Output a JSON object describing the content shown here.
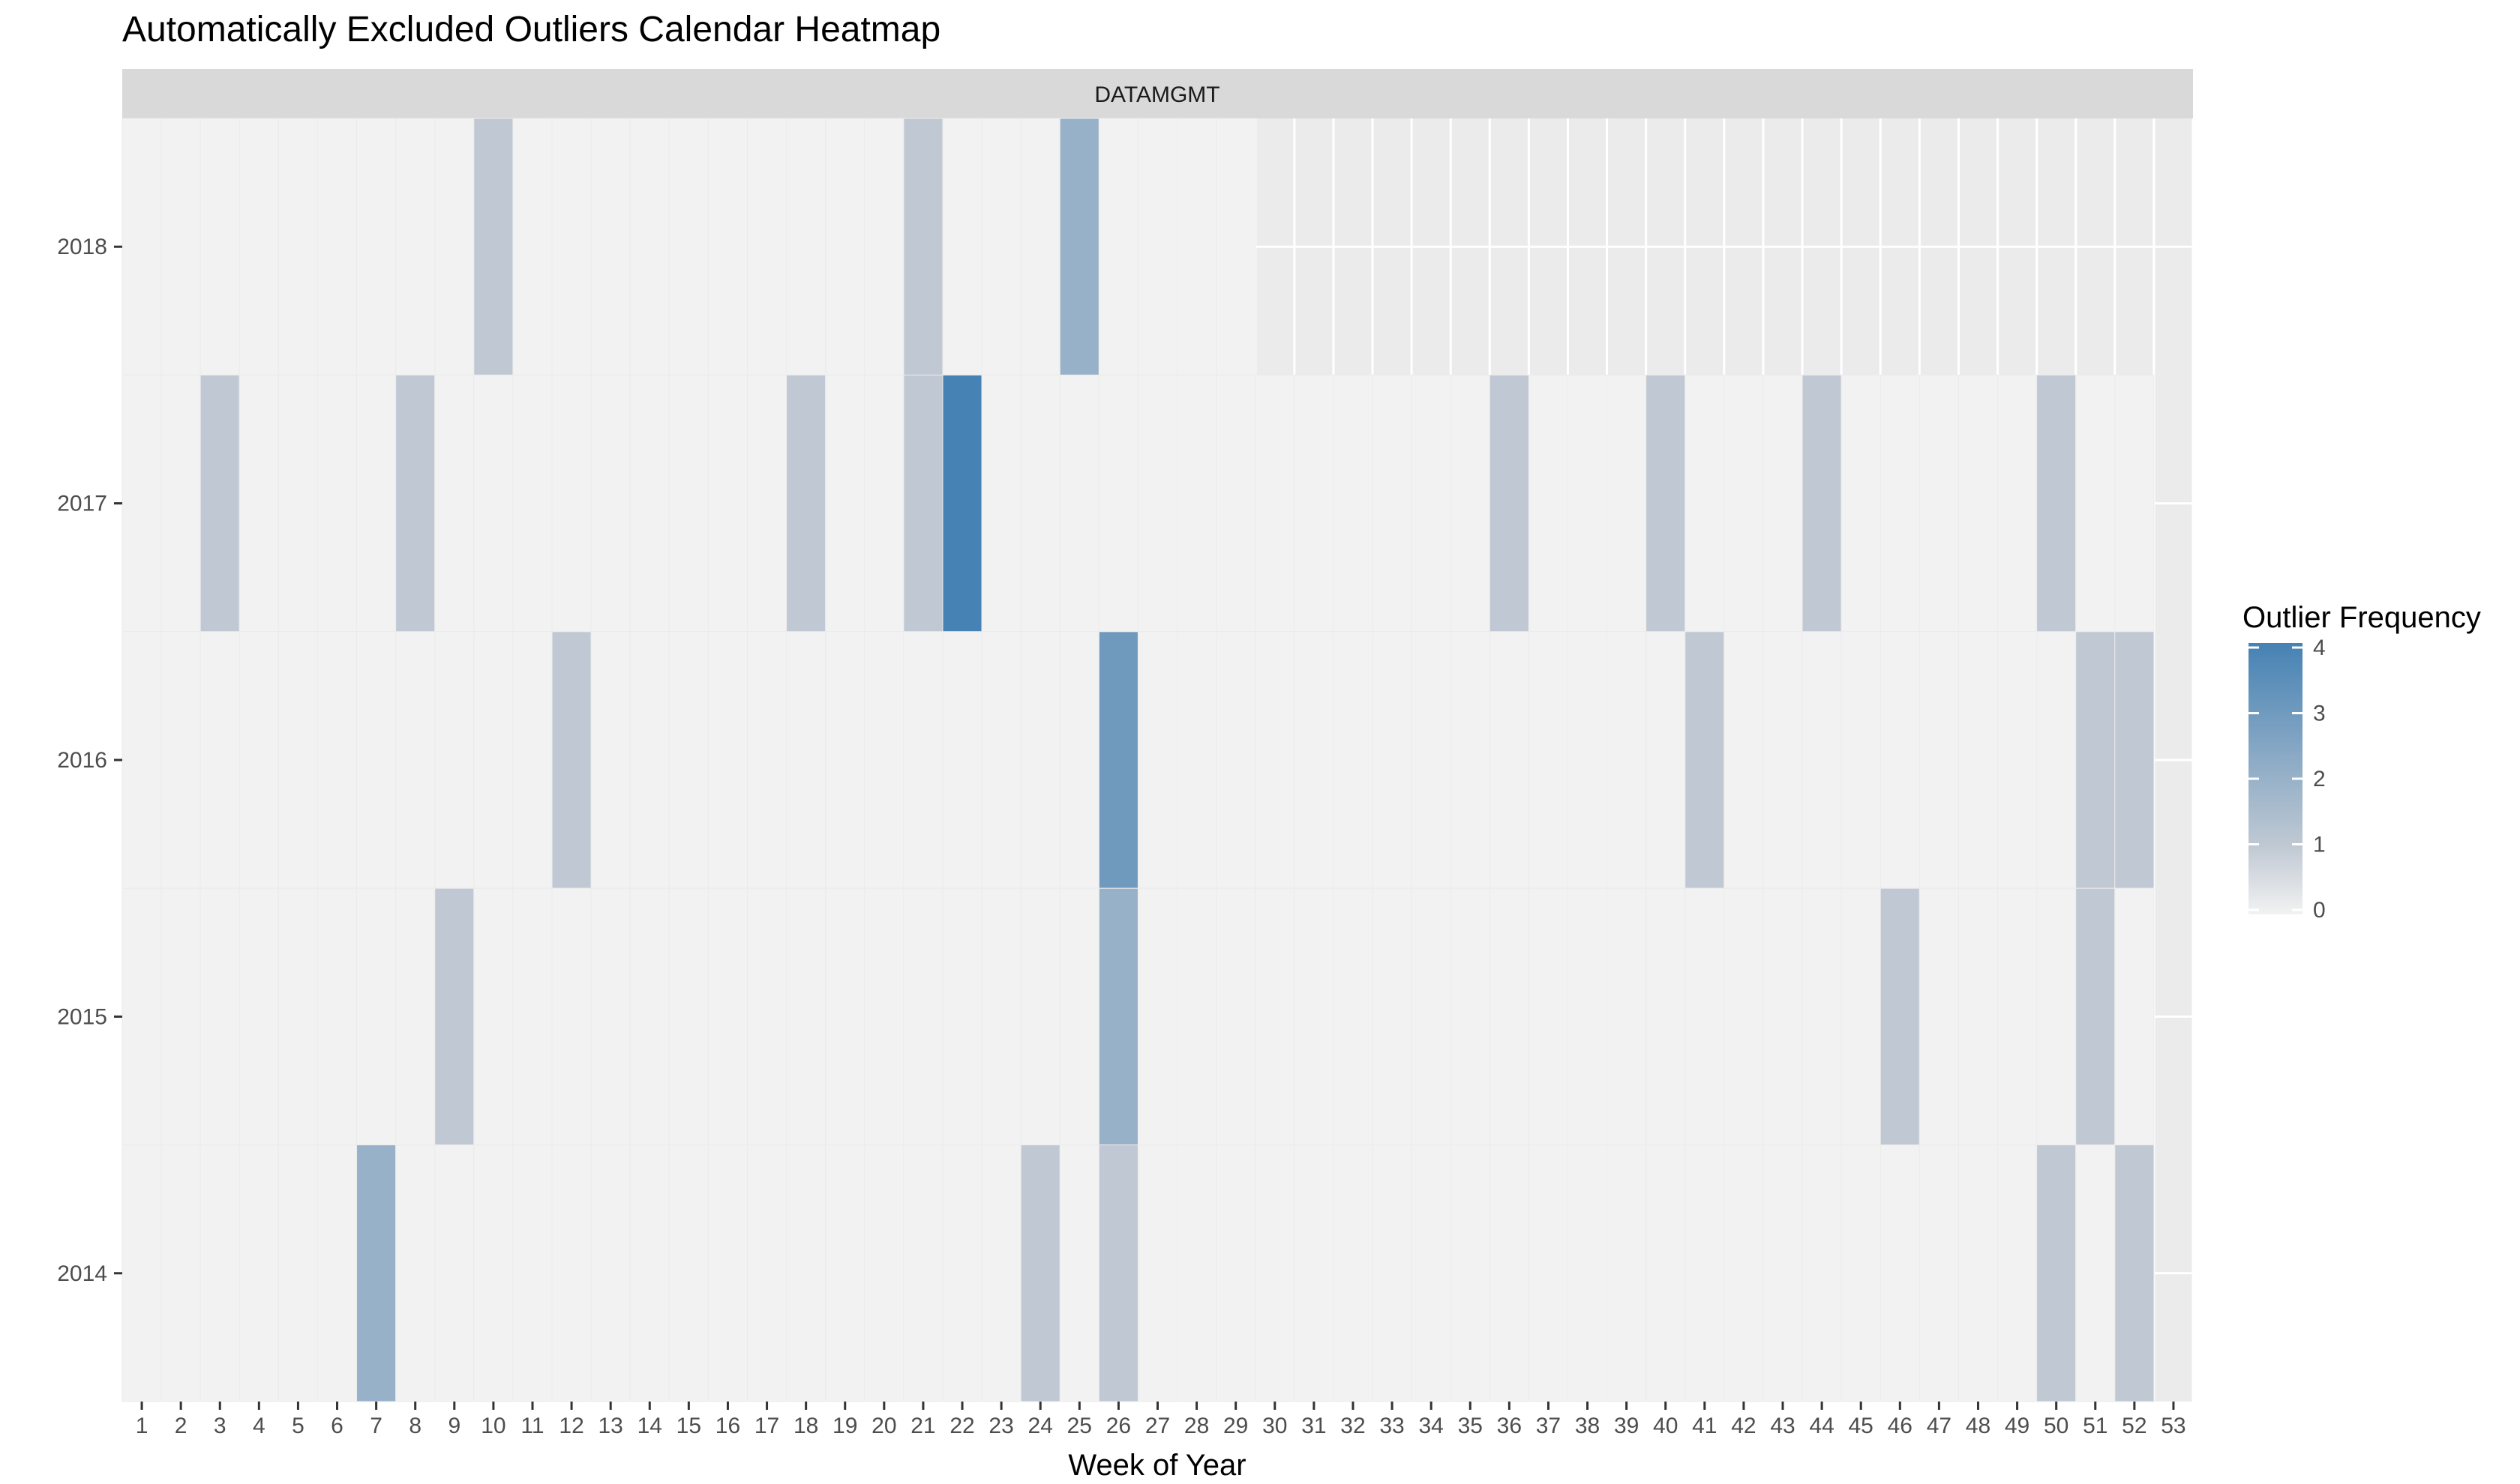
{
  "chart_data": {
    "type": "heatmap",
    "title": "Automatically Excluded Outliers Calendar Heatmap",
    "facet_label": "DATAMGMT",
    "xlabel": "Week of Year",
    "ylabel": "",
    "x_categories": [
      "1",
      "2",
      "3",
      "4",
      "5",
      "6",
      "7",
      "8",
      "9",
      "10",
      "11",
      "12",
      "13",
      "14",
      "15",
      "16",
      "17",
      "18",
      "19",
      "20",
      "21",
      "22",
      "23",
      "24",
      "25",
      "26",
      "27",
      "28",
      "29",
      "30",
      "31",
      "32",
      "33",
      "34",
      "35",
      "36",
      "37",
      "38",
      "39",
      "40",
      "41",
      "42",
      "43",
      "44",
      "45",
      "46",
      "47",
      "48",
      "49",
      "50",
      "51",
      "52",
      "53"
    ],
    "y_categories": [
      "2018",
      "2017",
      "2016",
      "2015",
      "2014"
    ],
    "weeks_with_data": {
      "2018": 29,
      "2017": 52,
      "2016": 52,
      "2015": 52,
      "2014": 52
    },
    "values": [
      {
        "year": "2018",
        "week": 10,
        "value": 1
      },
      {
        "year": "2018",
        "week": 21,
        "value": 1
      },
      {
        "year": "2018",
        "week": 25,
        "value": 2
      },
      {
        "year": "2017",
        "week": 3,
        "value": 1
      },
      {
        "year": "2017",
        "week": 8,
        "value": 1
      },
      {
        "year": "2017",
        "week": 18,
        "value": 1
      },
      {
        "year": "2017",
        "week": 21,
        "value": 1
      },
      {
        "year": "2017",
        "week": 22,
        "value": 4
      },
      {
        "year": "2017",
        "week": 36,
        "value": 1
      },
      {
        "year": "2017",
        "week": 40,
        "value": 1
      },
      {
        "year": "2017",
        "week": 44,
        "value": 1
      },
      {
        "year": "2017",
        "week": 50,
        "value": 1
      },
      {
        "year": "2016",
        "week": 12,
        "value": 1
      },
      {
        "year": "2016",
        "week": 26,
        "value": 3
      },
      {
        "year": "2016",
        "week": 41,
        "value": 1
      },
      {
        "year": "2016",
        "week": 51,
        "value": 1
      },
      {
        "year": "2016",
        "week": 52,
        "value": 1
      },
      {
        "year": "2015",
        "week": 9,
        "value": 1
      },
      {
        "year": "2015",
        "week": 26,
        "value": 2
      },
      {
        "year": "2015",
        "week": 46,
        "value": 1
      },
      {
        "year": "2015",
        "week": 51,
        "value": 1
      },
      {
        "year": "2014",
        "week": 7,
        "value": 2
      },
      {
        "year": "2014",
        "week": 24,
        "value": 1
      },
      {
        "year": "2014",
        "week": 26,
        "value": 1
      },
      {
        "year": "2014",
        "week": 50,
        "value": 1
      },
      {
        "year": "2014",
        "week": 52,
        "value": 1
      }
    ],
    "legend": {
      "title": "Outlier Frequency",
      "ticks": [
        "0",
        "1",
        "2",
        "3",
        "4"
      ],
      "min": 0,
      "max": 4,
      "low_color": "#f2f2f2",
      "mid_color": "#c0c9d3",
      "high_color": "#4682b4"
    },
    "colors": {
      "panel_background": "#ebebeb",
      "empty_cell": "#f2f2f2",
      "strip_background": "#d9d9d9",
      "grid_line": "#ffffff"
    }
  }
}
